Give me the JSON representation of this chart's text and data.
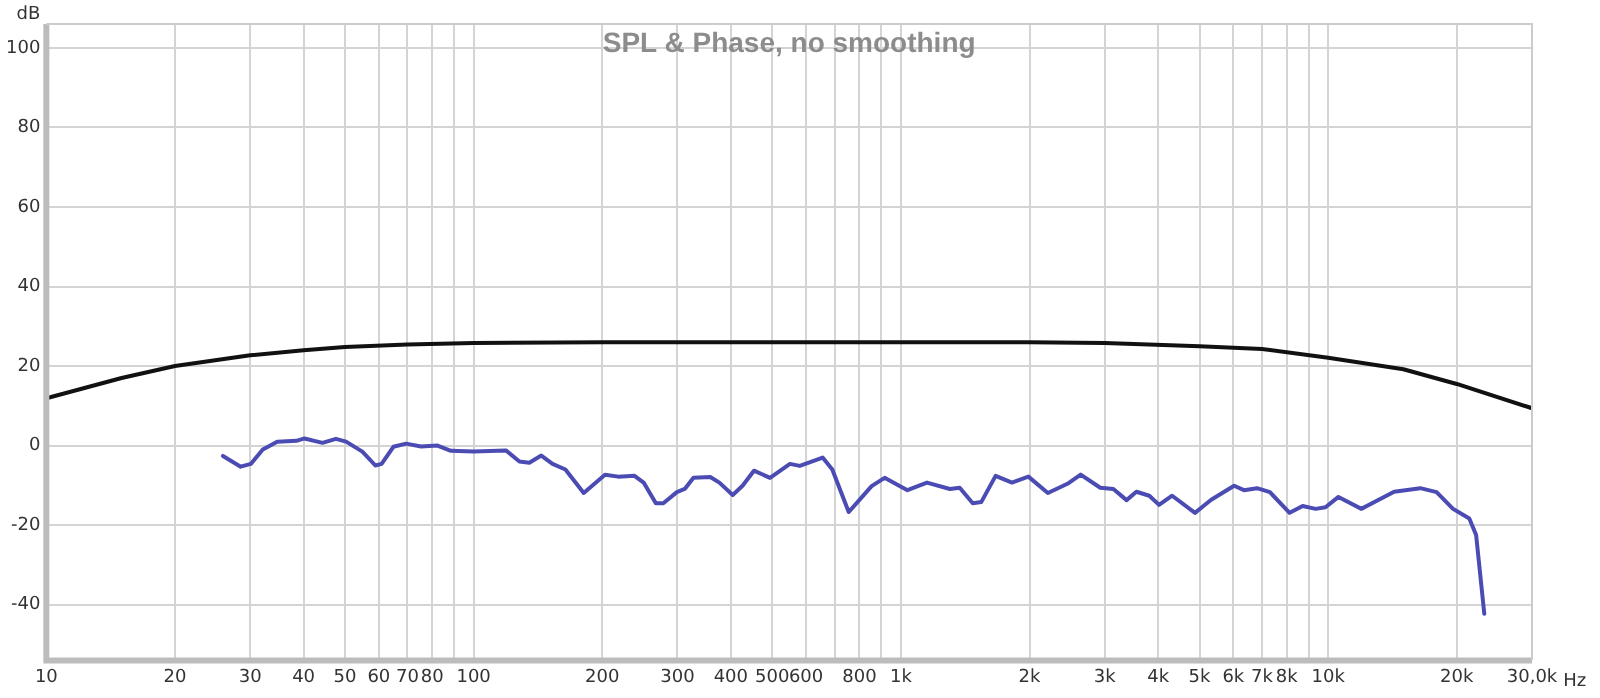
{
  "chart_data": {
    "type": "line",
    "title": "SPL & Phase, no smoothing",
    "xlabel": "Hz",
    "ylabel": "dB",
    "xlim": [
      10,
      30000
    ],
    "ylim": [
      -54,
      106
    ],
    "xticks": [
      10,
      20,
      30,
      40,
      50,
      60,
      70,
      80,
      {
        "value": 90,
        "label": null
      },
      100,
      200,
      300,
      400,
      500,
      600,
      {
        "value": 700,
        "label": null
      },
      800,
      {
        "value": 900,
        "label": null
      },
      {
        "value": 1000,
        "label": "1k"
      },
      {
        "value": 2000,
        "label": "2k"
      },
      {
        "value": 3000,
        "label": "3k"
      },
      {
        "value": 4000,
        "label": "4k"
      },
      {
        "value": 5000,
        "label": "5k"
      },
      {
        "value": 6000,
        "label": "6k"
      },
      {
        "value": 7000,
        "label": "7k"
      },
      {
        "value": 8000,
        "label": "8k"
      },
      {
        "value": 9000,
        "label": null
      },
      {
        "value": 10000,
        "label": "10k"
      },
      {
        "value": 20000,
        "label": "20k"
      },
      {
        "value": 30000,
        "label": "30,0k"
      }
    ],
    "yticks": [
      -40,
      -20,
      0,
      20,
      40,
      60,
      80,
      100
    ],
    "log": "x",
    "grid": true,
    "legend": false,
    "marker": "none",
    "line_style": "solid",
    "series": [
      {
        "color": "#111111",
        "x": [
          10,
          15,
          20,
          30,
          40,
          50,
          70,
          100,
          200,
          500,
          1000,
          2000,
          3000,
          5000,
          7000,
          10000,
          15000,
          20000,
          30000
        ],
        "values": [
          11.9,
          17,
          20,
          22.7,
          24,
          24.8,
          25.4,
          25.8,
          26,
          26,
          26,
          26,
          25.8,
          25,
          24.3,
          22.1,
          19.2,
          15.5,
          9.4
        ]
      },
      {
        "color": "#4b4bb4",
        "x": [
          25.9,
          28.5,
          30.1,
          32.1,
          34.7,
          38.5,
          40.2,
          44.3,
          47.6,
          50.3,
          54.9,
          58.9,
          60.9,
          64.9,
          69.5,
          75.3,
          82.3,
          88.5,
          100,
          119,
          128,
          135,
          144,
          153,
          164,
          181,
          203,
          218,
          238,
          250,
          267,
          278,
          299,
          312,
          327,
          358,
          376,
          404,
          426,
          453,
          494,
          550,
          580,
          656,
          691,
          755,
          854,
          916,
          1036,
          1151,
          1302,
          1373,
          1473,
          1542,
          1666,
          1820,
          1988,
          2208,
          2454,
          2635,
          2929,
          3143,
          3374,
          3558,
          3815,
          4020,
          4314,
          4879,
          5325,
          6025,
          6353,
          6814,
          7306,
          8123,
          8715,
          9346,
          9860,
          10570,
          11960,
          14270,
          16430,
          17940,
          19600,
          21400,
          22200,
          23200
        ],
        "values": [
          -2.6,
          -5.3,
          -4.6,
          -1,
          1,
          1.2,
          1.8,
          0.7,
          1.7,
          1,
          -1.5,
          -5,
          -4.6,
          -0.3,
          0.5,
          -0.2,
          0,
          -1.3,
          -1.5,
          -1.2,
          -4,
          -4.3,
          -2.5,
          -4.6,
          -6,
          -11.9,
          -7.3,
          -7.8,
          -7.6,
          -9.3,
          -14.5,
          -14.5,
          -11.7,
          -10.9,
          -8.1,
          -7.9,
          -9.3,
          -12.4,
          -10.1,
          -6.3,
          -8.1,
          -4.6,
          -5.1,
          -3,
          -6,
          -16.7,
          -10.2,
          -8.1,
          -11.2,
          -9.3,
          -10.9,
          -10.6,
          -14.5,
          -14.2,
          -7.6,
          -9.3,
          -7.8,
          -11.9,
          -9.6,
          -7.3,
          -10.6,
          -10.9,
          -13.7,
          -11.6,
          -12.6,
          -14.9,
          -12.6,
          -16.9,
          -13.6,
          -10.1,
          -11.2,
          -10.7,
          -11.7,
          -16.9,
          -15.2,
          -15.9,
          -15.5,
          -12.9,
          -15.9,
          -11.6,
          -10.7,
          -11.7,
          -15.9,
          -18.3,
          -22.5,
          -42.3
        ]
      }
    ]
  }
}
